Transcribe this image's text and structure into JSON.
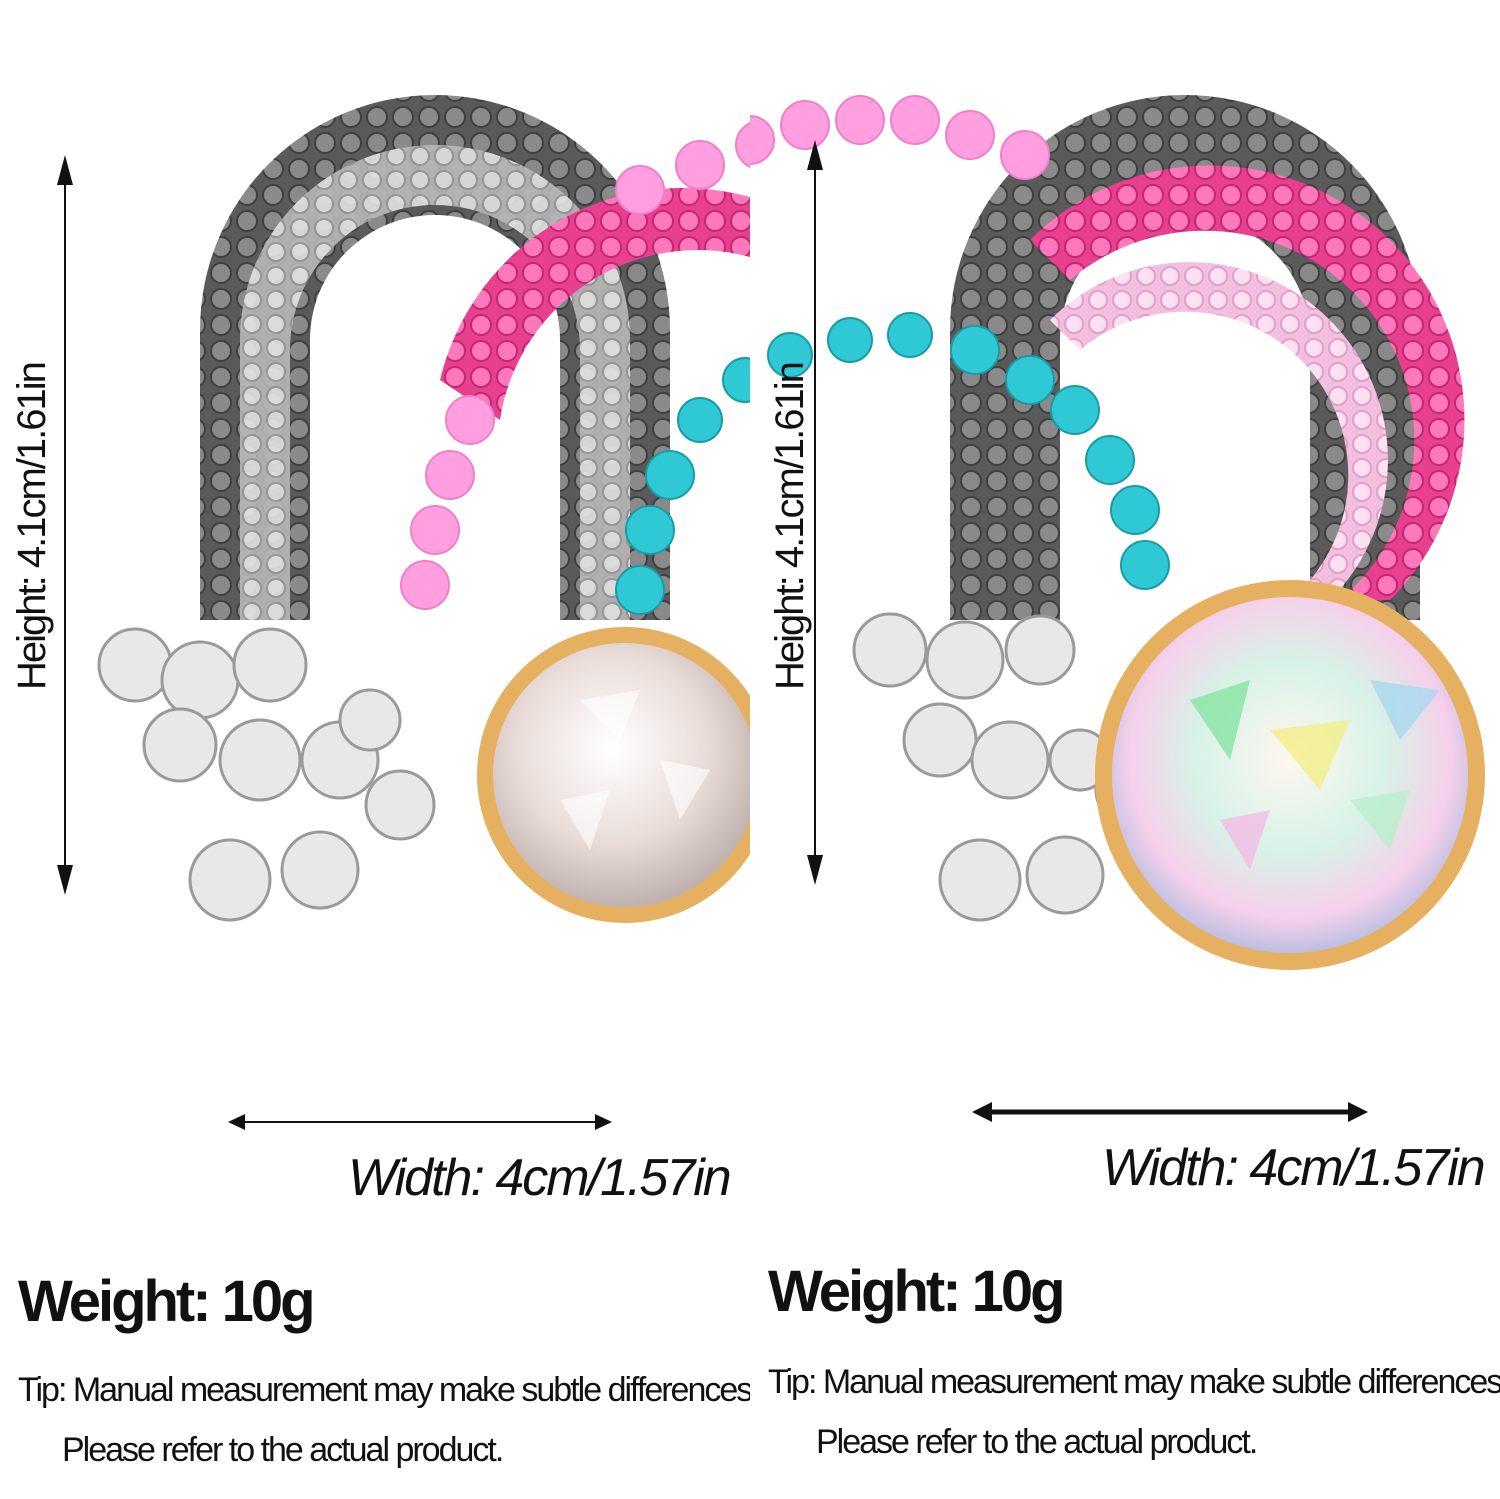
{
  "left_panel": {
    "height_label": "Height: 4.1cm/1.61in",
    "width_label": "Width: 4cm/1.57in",
    "weight_label": "Weight: 10g",
    "tip_line1": "Tip: Manual measurement may make subtle differences,",
    "tip_line2": "Please refer to the actual product."
  },
  "right_panel": {
    "height_label": "Height: 4.1cm/1.61in",
    "width_label": "Width: 4cm/1.57in",
    "weight_label": "Weight: 10g",
    "tip_line1": "Tip: Manual measurement may make subtle differences,",
    "tip_line2": "Please refer to the actual product."
  },
  "colors": {
    "outer_band": "#6e6e6e",
    "silver_band": "#c8c8c8",
    "pink_band": "#ff5fa8",
    "light_pink_band": "#ff9fe0",
    "turquoise": "#2ec9d4",
    "gold": "#e6b061",
    "opal": "#efe3e0"
  },
  "icons": [
    "rainbow-brooch-image",
    "dimension-arrow-icon"
  ]
}
